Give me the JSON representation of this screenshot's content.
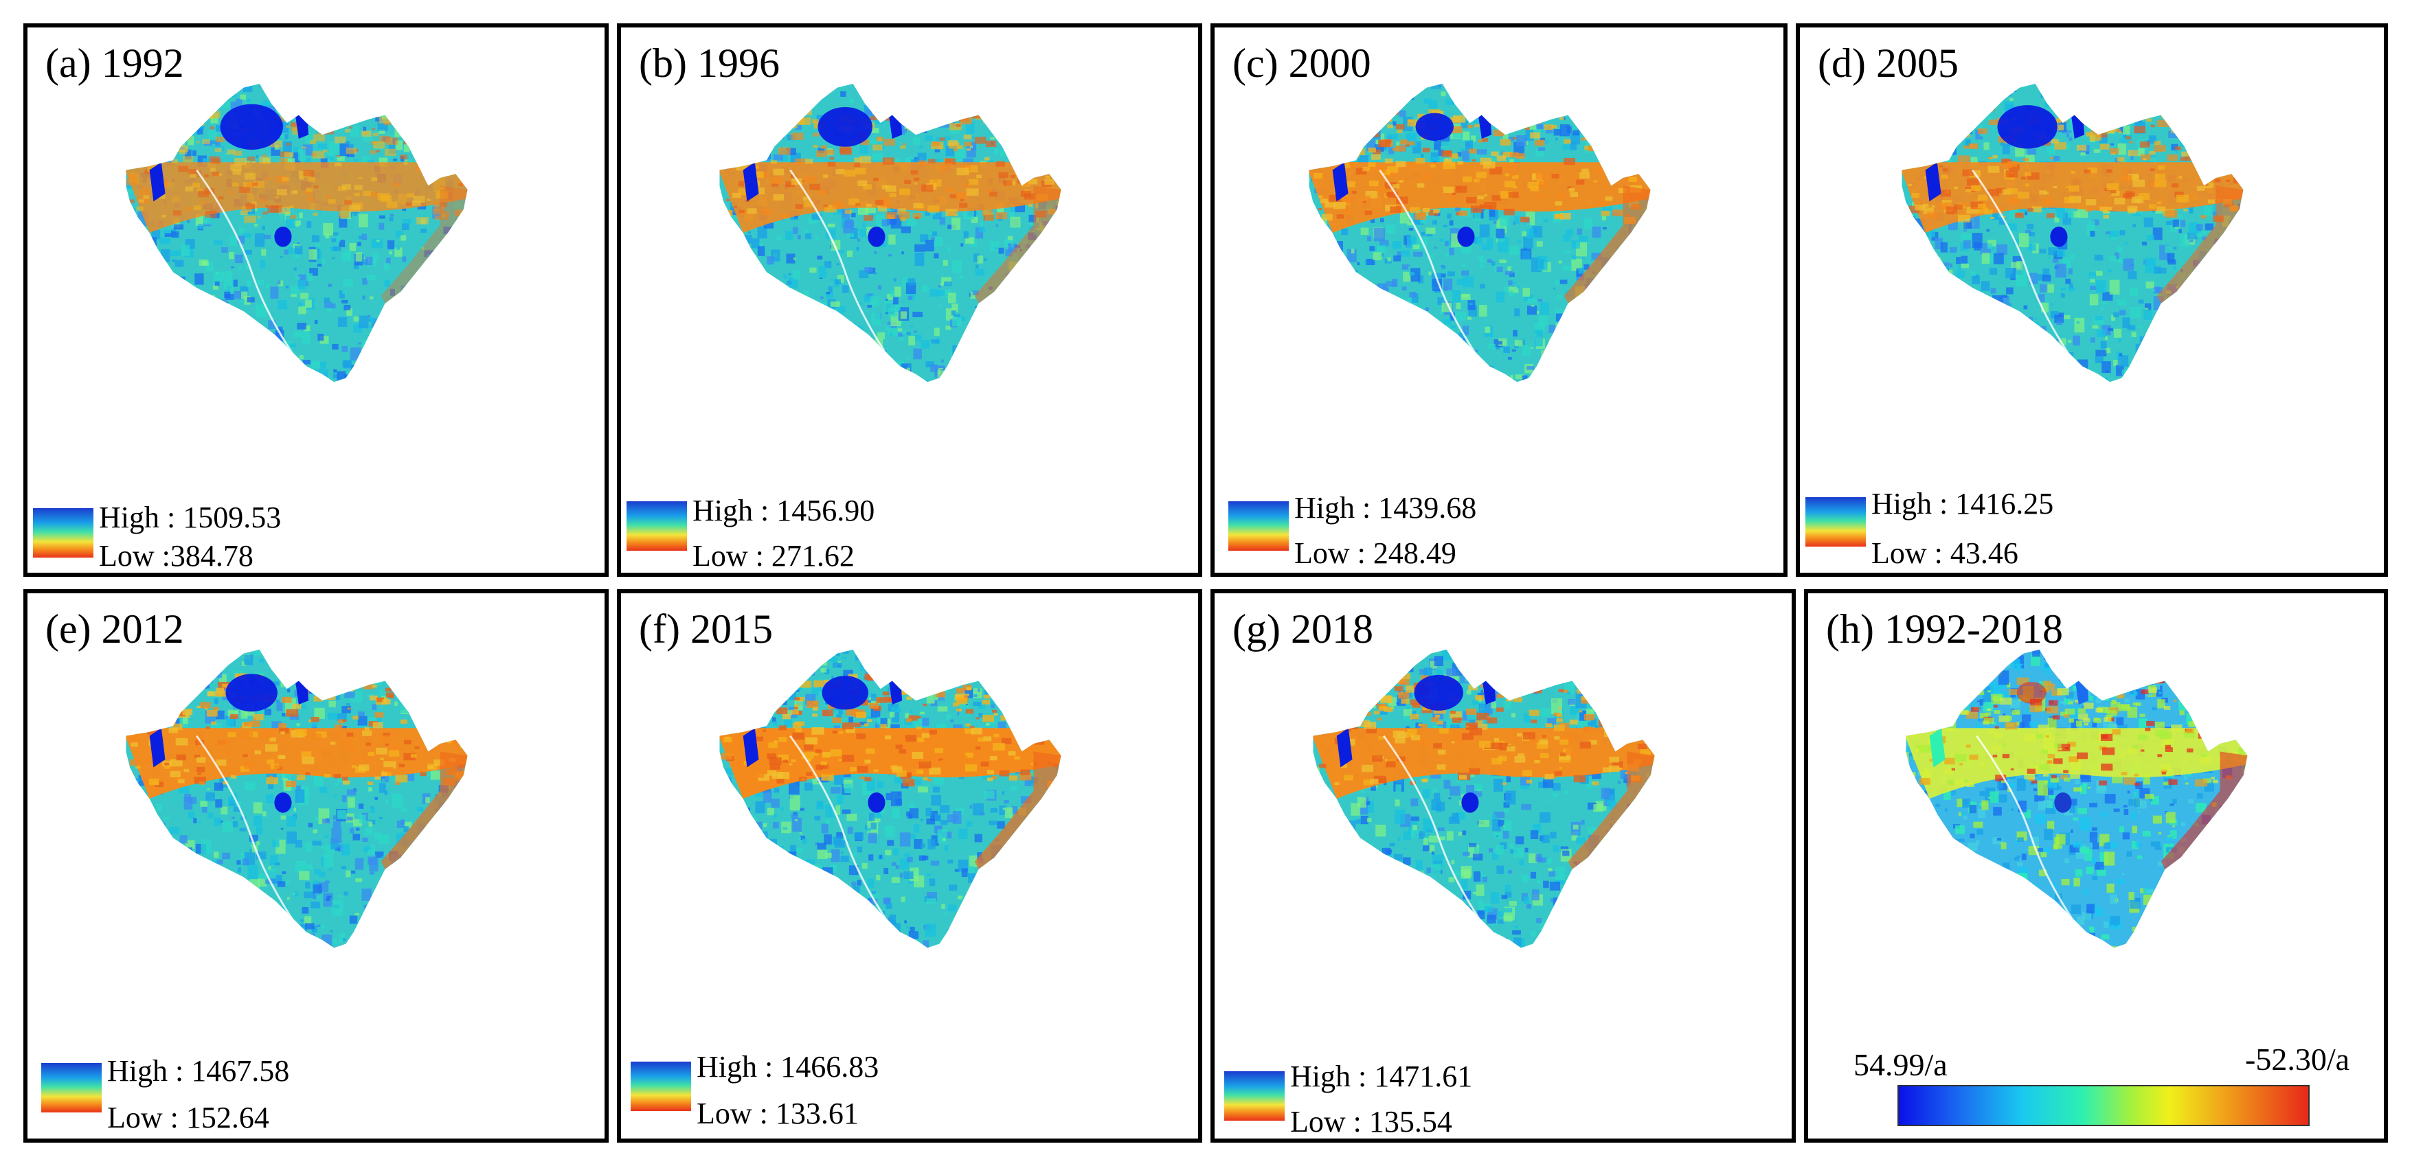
{
  "figure": {
    "panels": [
      {
        "title": "(a) 1992",
        "high_label": "High : 1509.53",
        "low_label": "Low :384.78",
        "high": 1509.53,
        "low": 384.78,
        "water_extent": 1.0,
        "red_level": 0.55
      },
      {
        "title": "(b) 1996",
        "high_label": "High : 1456.90",
        "low_label": "Low : 271.62",
        "high": 1456.9,
        "low": 271.62,
        "water_extent": 0.85,
        "red_level": 0.75
      },
      {
        "title": "(c) 2000",
        "high_label": "High : 1439.68",
        "low_label": "Low : 248.49",
        "high": 1439.68,
        "low": 248.49,
        "water_extent": 0.55,
        "red_level": 0.9
      },
      {
        "title": "(d) 2005",
        "high_label": "High : 1416.25",
        "low_label": "Low : 43.46",
        "high": 1416.25,
        "low": 43.46,
        "water_extent": 0.95,
        "red_level": 0.8
      },
      {
        "title": "(e) 2012",
        "high_label": "High : 1467.58",
        "low_label": "Low : 152.64",
        "high": 1467.58,
        "low": 152.64,
        "water_extent": 0.8,
        "red_level": 0.95
      },
      {
        "title": "(f) 2015",
        "high_label": "High : 1466.83",
        "low_label": "Low : 133.61",
        "high": 1466.83,
        "low": 133.61,
        "water_extent": 0.7,
        "red_level": 1.0
      },
      {
        "title": "(g) 2018",
        "high_label": "High : 1471.61",
        "low_label": "Low : 135.54",
        "high": 1471.61,
        "low": 135.54,
        "water_extent": 0.75,
        "red_level": 0.95
      }
    ],
    "trend_panel": {
      "title": "(h) 1992-2018",
      "max_label": "54.99/a",
      "min_label": "-52.30/a",
      "max": 54.99,
      "min": -52.3
    },
    "colors": {
      "high": "#1a3ccf",
      "mid": "#3fe0a8",
      "low": "#e8321a",
      "water": "#0a1ee0"
    }
  }
}
